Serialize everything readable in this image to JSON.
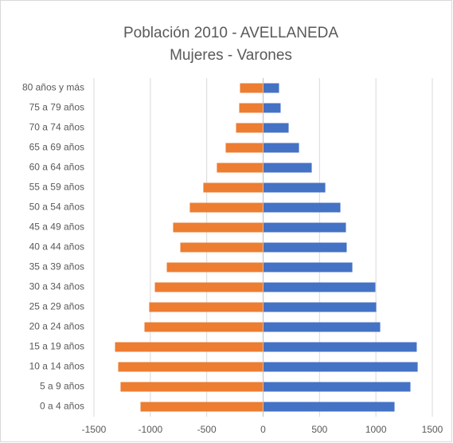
{
  "chart_data": {
    "type": "bar",
    "title": "Población 2010 - AVELLANEDA",
    "subtitle": "Mujeres - Varones",
    "categories": [
      "0 a 4 años",
      "5 a 9 años",
      "10 a 14 años",
      "15 a 19 años",
      "20 a 24 años",
      "25 a 29 años",
      "30 a 34 años",
      "35 a 39 años",
      "40 a 44 años",
      "45 a 49 años",
      "50 a 54 años",
      "55 a 59 años",
      "60 a 64 años",
      "65 a 69 años",
      "70 a 74 años",
      "75 a 79 años",
      "80 años y más"
    ],
    "series": [
      {
        "color": "#ed7d31",
        "values": [
          -1087,
          -1264,
          -1285,
          -1313,
          -1052,
          -1010,
          -960,
          -854,
          -734,
          -798,
          -650,
          -530,
          -410,
          -332,
          -240,
          -212,
          -205
        ]
      },
      {
        "color": "#4472c4",
        "values": [
          1165,
          1306,
          1370,
          1362,
          1038,
          1003,
          995,
          791,
          741,
          734,
          685,
          551,
          431,
          318,
          226,
          155,
          141
        ]
      }
    ],
    "xlim": [
      -1500,
      1500
    ],
    "xticks": [
      -1500,
      -1000,
      -500,
      0,
      500,
      1000,
      1500
    ],
    "grid": true
  }
}
